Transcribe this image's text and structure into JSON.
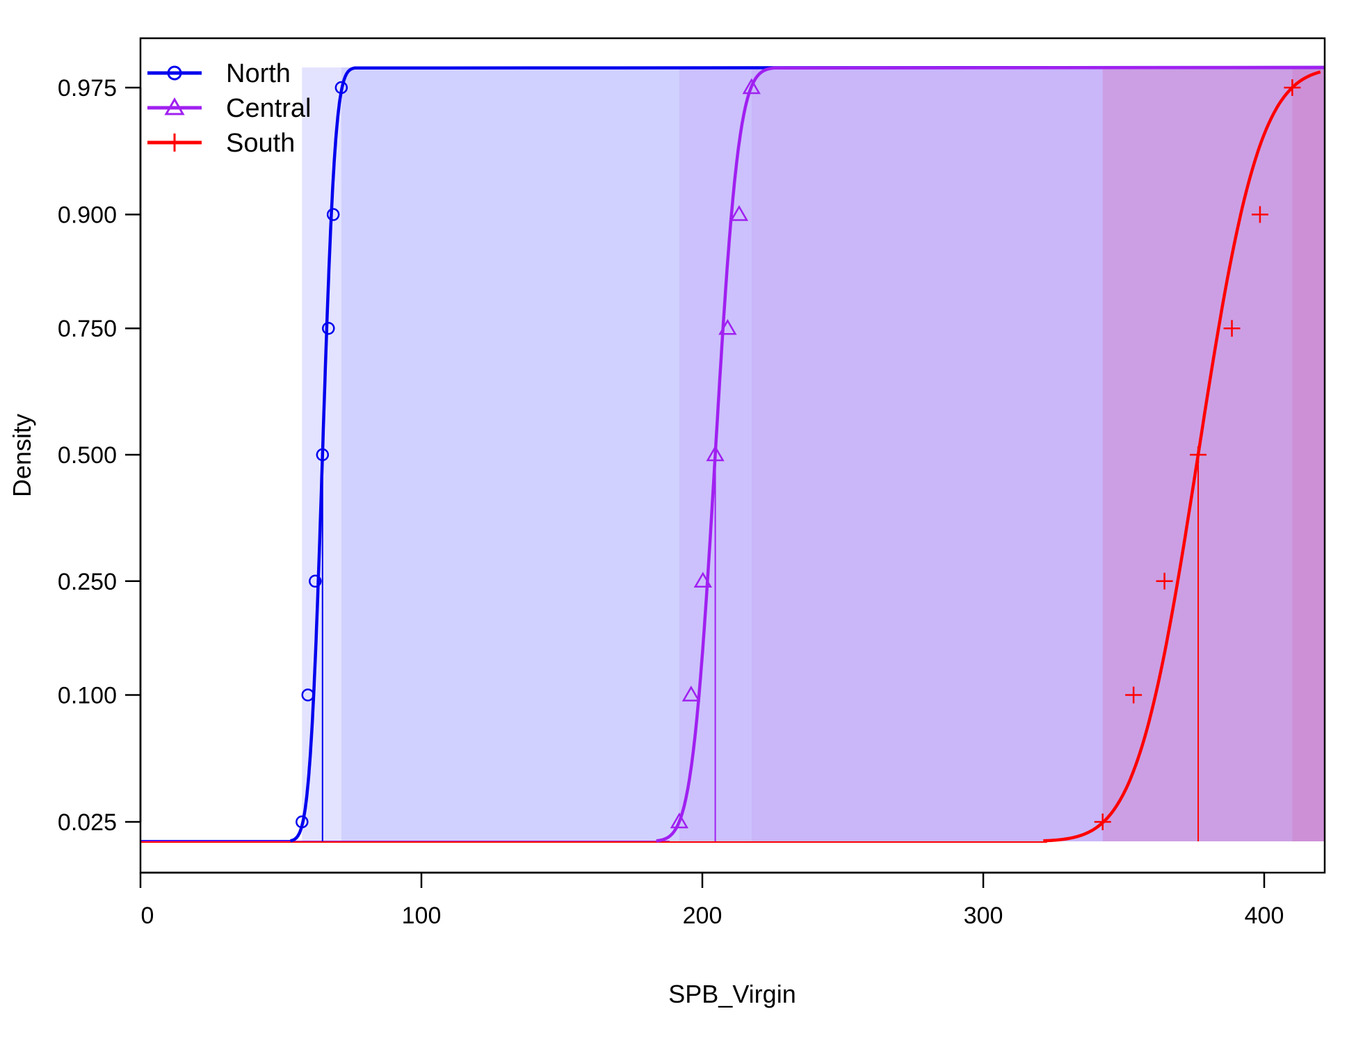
{
  "chart_data": {
    "type": "line",
    "xlabel": "SPB_Virgin",
    "ylabel": "Density",
    "xlim": [
      0,
      420
    ],
    "x_ticks": [
      0,
      100,
      200,
      300,
      400
    ],
    "y_ticks": [
      0.025,
      0.1,
      0.25,
      0.5,
      0.75,
      0.9,
      0.975
    ],
    "y_tick_labels": [
      "0.025",
      "0.100",
      "0.250",
      "0.500",
      "0.750",
      "0.900",
      "0.975"
    ],
    "y_scale": "normal-probability",
    "grid": false,
    "legend_position": "top-left",
    "series": [
      {
        "name": "North",
        "color": "#0000ee",
        "fill": "#ccccff",
        "marker": "circle",
        "median": 64.8,
        "ci95": [
          57.5,
          71.5
        ],
        "points": [
          {
            "x": 57.5,
            "p": 0.025
          },
          {
            "x": 59.6,
            "p": 0.1
          },
          {
            "x": 62.2,
            "p": 0.25
          },
          {
            "x": 64.8,
            "p": 0.5
          },
          {
            "x": 66.9,
            "p": 0.75
          },
          {
            "x": 68.6,
            "p": 0.9
          },
          {
            "x": 71.5,
            "p": 0.975
          }
        ]
      },
      {
        "name": "Central",
        "color": "#a020f0",
        "fill": "#c8b4fa",
        "marker": "triangle",
        "median": 204.6,
        "ci95": [
          191.8,
          217.5
        ],
        "points": [
          {
            "x": 191.8,
            "p": 0.025
          },
          {
            "x": 196.0,
            "p": 0.1
          },
          {
            "x": 200.2,
            "p": 0.25
          },
          {
            "x": 204.6,
            "p": 0.5
          },
          {
            "x": 209.0,
            "p": 0.75
          },
          {
            "x": 213.1,
            "p": 0.9
          },
          {
            "x": 217.5,
            "p": 0.975
          }
        ]
      },
      {
        "name": "South",
        "color": "#ff0000",
        "fill": "#cd8cd2",
        "marker": "plus",
        "median": 376.5,
        "ci95": [
          342.5,
          410.0
        ],
        "points": [
          {
            "x": 342.5,
            "p": 0.025
          },
          {
            "x": 353.5,
            "p": 0.1
          },
          {
            "x": 364.5,
            "p": 0.25
          },
          {
            "x": 376.5,
            "p": 0.5
          },
          {
            "x": 388.5,
            "p": 0.75
          },
          {
            "x": 398.5,
            "p": 0.9
          },
          {
            "x": 410.0,
            "p": 0.975
          }
        ]
      }
    ]
  }
}
